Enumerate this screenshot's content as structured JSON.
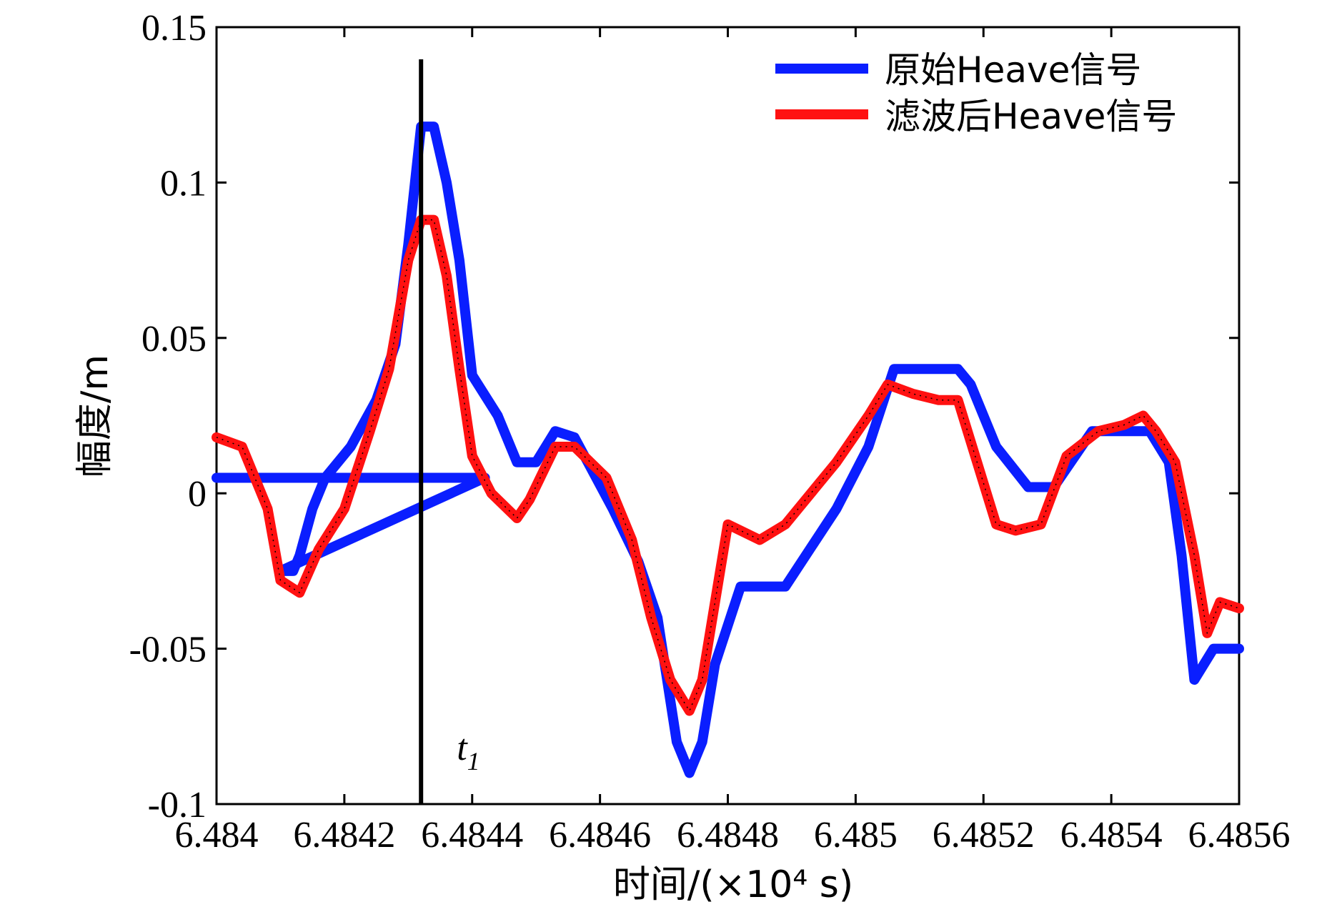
{
  "chart_data": {
    "type": "line",
    "xlabel": "时间/(×10⁴ s)",
    "ylabel": "幅度/m",
    "xlim": [
      6.484,
      6.4856
    ],
    "ylim": [
      -0.1,
      0.15
    ],
    "x_ticks": [
      "6.484",
      "6.4842",
      "6.4844",
      "6.4846",
      "6.4848",
      "6.485",
      "6.4852",
      "6.4854",
      "6.4856"
    ],
    "y_ticks": [
      "0.15",
      "0.1",
      "0.05",
      "0",
      "-0.05",
      "-0.1"
    ],
    "x_tick_values": [
      6.484,
      6.4842,
      6.4844,
      6.4846,
      6.4848,
      6.485,
      6.4852,
      6.4854,
      6.4856
    ],
    "y_tick_values": [
      0.15,
      0.1,
      0.05,
      0,
      -0.05,
      -0.1
    ],
    "grid": false,
    "legend_position": "top-right",
    "series": [
      {
        "name": "原始Heave信号",
        "color": "#0a1eff",
        "x": [
          6.484,
          6.48442,
          6.4841,
          6.48412,
          6.48413,
          6.48415,
          6.48417,
          6.48421,
          6.48425,
          6.48428,
          6.4843,
          6.48432,
          6.48434,
          6.48436,
          6.48438,
          6.4844,
          6.48444,
          6.48447,
          6.4845,
          6.48453,
          6.48456,
          6.48462,
          6.48466,
          6.48469,
          6.48472,
          6.48474,
          6.48476,
          6.48478,
          6.48482,
          6.48489,
          6.48497,
          6.48502,
          6.48506,
          6.48516,
          6.48518,
          6.48522,
          6.48527,
          6.48531,
          6.48537,
          6.48543,
          6.48546,
          6.48549,
          6.48551,
          6.48553,
          6.48556,
          6.4856
        ],
        "y": [
          0.005,
          0.005,
          -0.025,
          -0.025,
          -0.02,
          -0.005,
          0.005,
          0.015,
          0.03,
          0.048,
          0.08,
          0.118,
          0.118,
          0.1,
          0.075,
          0.038,
          0.025,
          0.01,
          0.01,
          0.02,
          0.018,
          -0.005,
          -0.022,
          -0.04,
          -0.08,
          -0.09,
          -0.08,
          -0.055,
          -0.03,
          -0.03,
          -0.005,
          0.015,
          0.04,
          0.04,
          0.035,
          0.015,
          0.002,
          0.002,
          0.02,
          0.02,
          0.02,
          0.01,
          -0.02,
          -0.06,
          -0.05,
          -0.05
        ]
      },
      {
        "name": "滤波后Heave信号",
        "color": "#ff1111",
        "x": [
          6.484,
          6.48404,
          6.48408,
          6.4841,
          6.48413,
          6.48416,
          6.4842,
          6.48424,
          6.48427,
          6.4843,
          6.48432,
          6.48434,
          6.48436,
          6.48438,
          6.4844,
          6.48443,
          6.48447,
          6.48449,
          6.48453,
          6.48456,
          6.48461,
          6.48465,
          6.48468,
          6.48471,
          6.48474,
          6.48476,
          6.4848,
          6.48485,
          6.48489,
          6.48497,
          6.48502,
          6.48505,
          6.48509,
          6.48513,
          6.48516,
          6.48519,
          6.48522,
          6.48525,
          6.48529,
          6.48533,
          6.48538,
          6.48542,
          6.48545,
          6.48547,
          6.4855,
          6.48553,
          6.48555,
          6.48557,
          6.4856
        ],
        "y": [
          0.018,
          0.015,
          -0.005,
          -0.028,
          -0.032,
          -0.018,
          -0.005,
          0.02,
          0.04,
          0.075,
          0.088,
          0.088,
          0.07,
          0.04,
          0.012,
          0.0,
          -0.008,
          -0.002,
          0.015,
          0.015,
          0.005,
          -0.015,
          -0.04,
          -0.06,
          -0.07,
          -0.06,
          -0.01,
          -0.015,
          -0.01,
          0.01,
          0.025,
          0.035,
          0.032,
          0.03,
          0.03,
          0.01,
          -0.01,
          -0.012,
          -0.01,
          0.012,
          0.02,
          0.022,
          0.025,
          0.02,
          0.01,
          -0.02,
          -0.045,
          -0.035,
          -0.037
        ]
      }
    ],
    "annotations": {
      "vline_x": 6.48432,
      "label": "t",
      "subscript": "1"
    }
  }
}
